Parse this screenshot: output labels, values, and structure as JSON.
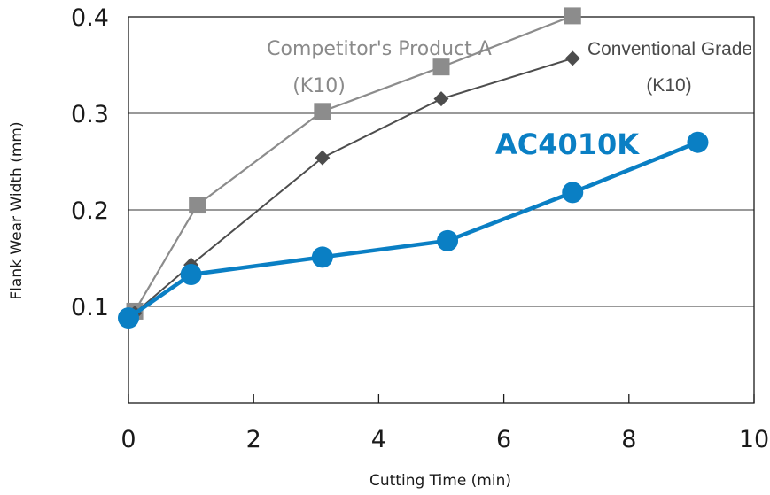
{
  "chart_data": {
    "type": "line",
    "xlabel": "Cutting Time (min)",
    "ylabel": "Flank Wear Width (mm)",
    "xlim": [
      0,
      10
    ],
    "ylim": [
      0.0,
      0.4
    ],
    "x_ticks": [
      "0",
      "2",
      "4",
      "6",
      "8",
      "10"
    ],
    "y_ticks": [
      "0.1",
      "0.2",
      "0.3",
      "0.4"
    ],
    "grid": "horizontal",
    "series": [
      {
        "name": "Competitor's Product A (K10)",
        "label_line1": "Competitor's Product A",
        "label_line2": "(K10)",
        "color": "#8c8c8c",
        "marker": "square",
        "points": [
          [
            0.1,
            0.095
          ],
          [
            1.1,
            0.205
          ],
          [
            3.1,
            0.302
          ],
          [
            5.0,
            0.348
          ],
          [
            7.1,
            0.401
          ]
        ]
      },
      {
        "name": "Conventional Grade (K10)",
        "label_line1": "Conventional Grade",
        "label_line2": "(K10)",
        "color": "#4d4d4d",
        "marker": "diamond",
        "points": [
          [
            0.1,
            0.093
          ],
          [
            1.0,
            0.143
          ],
          [
            3.1,
            0.254
          ],
          [
            5.0,
            0.315
          ],
          [
            7.1,
            0.357
          ]
        ]
      },
      {
        "name": "AC4010K",
        "label_line1": "AC4010K",
        "color": "#0a7fc4",
        "marker": "circle",
        "points": [
          [
            0.0,
            0.088
          ],
          [
            1.0,
            0.133
          ],
          [
            3.1,
            0.151
          ],
          [
            5.1,
            0.168
          ],
          [
            7.1,
            0.218
          ],
          [
            9.1,
            0.27
          ]
        ]
      }
    ]
  }
}
